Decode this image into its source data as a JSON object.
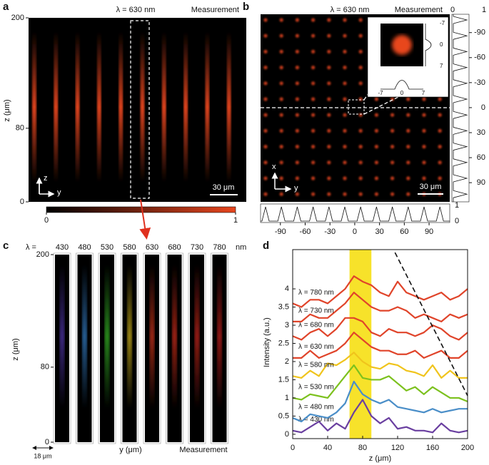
{
  "chart_data": [
    {
      "type": "heatmap",
      "panel": "a",
      "title": "λ = 630 nm",
      "annotation": "Measurement",
      "ylabel": "z (μm)",
      "ylim": [
        0,
        200
      ],
      "yticks": [
        0,
        80,
        200
      ],
      "axis_arrows": [
        "z",
        "y"
      ],
      "scale_bar": "30 μm",
      "colorbar_ticks": [
        0,
        1
      ],
      "colormap": [
        "#000000",
        "#e8461e"
      ]
    },
    {
      "type": "heatmap",
      "panel": "b",
      "title": "λ = 630 nm",
      "annotation": "Measurement",
      "xlim": [
        -114,
        115
      ],
      "xticks": [
        -90,
        -60,
        -30,
        0,
        30,
        60,
        90
      ],
      "ylim": [
        -112,
        113
      ],
      "yticks": [
        -90,
        -60,
        -30,
        0,
        30,
        60,
        90
      ],
      "profile_ticks": [
        0,
        1
      ],
      "axis_arrows": [
        "x",
        "y"
      ],
      "scale_bar": "30 μm",
      "inset_ticks": [
        -7,
        0,
        7
      ],
      "color": "#e8461e"
    },
    {
      "type": "heatmap",
      "panel": "c",
      "wavelength_label": "λ =",
      "unit": "nm",
      "wavelengths": [
        430,
        480,
        530,
        580,
        630,
        680,
        730,
        780
      ],
      "colors": [
        "#5a3cc0",
        "#3a8ee0",
        "#3ccf2a",
        "#e8c81e",
        "#e83a1e",
        "#e8321e",
        "#e02a1e",
        "#d8221e"
      ],
      "ylabel": "z (μm)",
      "ylim": [
        0,
        200
      ],
      "yticks": [
        0,
        80,
        200
      ],
      "xlabel": "y (μm)",
      "annotation": "Measurement",
      "scale_bar": "18 μm"
    },
    {
      "type": "line",
      "panel": "d",
      "xlabel": "z (μm)",
      "ylabel": "Intensity (a.u.)",
      "xlim": [
        0,
        200
      ],
      "xticks": [
        0,
        40,
        80,
        120,
        160,
        200
      ],
      "ylim": [
        -0.12,
        5.08
      ],
      "yticks": [
        0,
        0.5,
        1,
        1.5,
        2,
        2.5,
        3,
        3.5,
        4
      ],
      "highlight": [
        65,
        90
      ],
      "highlight_color": "#f7e22a",
      "trend_line": {
        "x": [
          117,
          200
        ],
        "y": [
          5.0,
          1.06
        ]
      },
      "x": [
        0,
        10,
        20,
        30,
        40,
        50,
        60,
        70,
        80,
        90,
        100,
        110,
        120,
        130,
        140,
        150,
        160,
        170,
        180,
        190,
        200
      ],
      "series": [
        {
          "name": "λ = 430 nm",
          "color": "#6a3fa0",
          "values": [
            0.1,
            0.05,
            0.2,
            0.35,
            0.1,
            0.3,
            0.15,
            0.6,
            0.95,
            0.5,
            0.3,
            0.45,
            0.15,
            0.2,
            0.1,
            0.1,
            0.05,
            0.3,
            0.1,
            0.05,
            0.1
          ]
        },
        {
          "name": "λ = 480 nm",
          "color": "#4a8ec8",
          "values": [
            0.45,
            0.35,
            0.55,
            0.5,
            0.45,
            0.6,
            0.85,
            1.45,
            1.1,
            0.95,
            0.85,
            0.95,
            0.75,
            0.7,
            0.65,
            0.6,
            0.7,
            0.6,
            0.65,
            0.7,
            0.7
          ]
        },
        {
          "name": "λ = 530 nm",
          "color": "#7cc11e",
          "values": [
            1.0,
            0.95,
            1.1,
            1.05,
            1.0,
            1.3,
            1.6,
            1.9,
            1.55,
            1.5,
            1.5,
            1.6,
            1.4,
            1.2,
            1.3,
            1.1,
            1.3,
            1.15,
            1.0,
            1.0,
            0.9
          ]
        },
        {
          "name": "λ = 580 nm",
          "color": "#f0c41c",
          "values": [
            1.6,
            1.55,
            1.75,
            1.6,
            1.95,
            1.9,
            2.05,
            2.25,
            2.0,
            1.85,
            1.8,
            1.95,
            1.9,
            1.75,
            1.7,
            1.6,
            1.9,
            1.55,
            1.75,
            1.55,
            1.55
          ]
        },
        {
          "name": "λ = 630 nm",
          "color": "#e0442a",
          "values": [
            2.1,
            2.1,
            2.3,
            2.1,
            2.2,
            2.3,
            2.5,
            2.8,
            2.6,
            2.4,
            2.3,
            2.3,
            2.2,
            2.2,
            2.3,
            2.1,
            2.2,
            2.3,
            2.1,
            2.1,
            2.3
          ]
        },
        {
          "name": "λ = 680 nm",
          "color": "#e0442a",
          "values": [
            2.7,
            2.6,
            2.8,
            2.9,
            2.7,
            2.9,
            3.2,
            3.2,
            3.1,
            2.8,
            2.7,
            2.9,
            2.8,
            2.8,
            2.7,
            2.8,
            3.0,
            2.9,
            2.7,
            2.6,
            2.8
          ]
        },
        {
          "name": "λ = 730 nm",
          "color": "#e0442a",
          "values": [
            3.1,
            3.1,
            3.3,
            3.2,
            3.2,
            3.4,
            3.6,
            3.9,
            3.7,
            3.5,
            3.4,
            3.4,
            3.5,
            3.4,
            3.2,
            3.3,
            3.2,
            3.1,
            3.3,
            3.2,
            3.3
          ]
        },
        {
          "name": "λ = 780 nm",
          "color": "#e0442a",
          "values": [
            3.6,
            3.5,
            3.7,
            3.7,
            3.6,
            3.8,
            4.0,
            4.35,
            4.2,
            4.1,
            3.9,
            3.8,
            4.2,
            3.9,
            3.8,
            3.7,
            3.8,
            3.9,
            3.7,
            3.8,
            4.0
          ]
        }
      ]
    }
  ]
}
